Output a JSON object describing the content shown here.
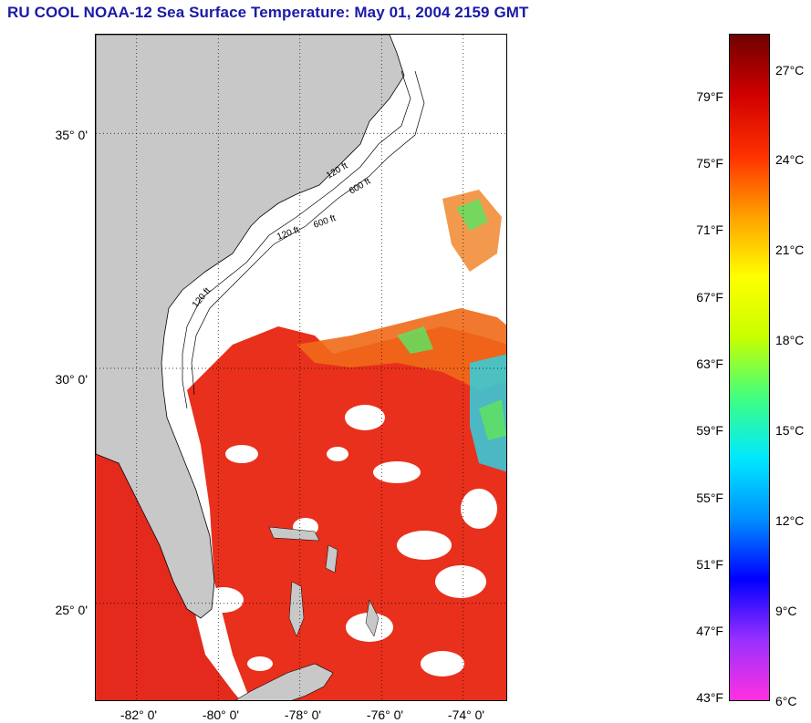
{
  "title": "RU COOL  NOAA-12  Sea Surface Temperature:  May 01, 2004 2159 GMT",
  "map": {
    "lat_labels": [
      "35° 0'",
      "30° 0'",
      "25° 0'"
    ],
    "lat_values": [
      35,
      30,
      25
    ],
    "lon_labels": [
      "-82° 0'",
      "-80° 0'",
      "-78° 0'",
      "-76° 0'",
      "-74° 0'"
    ],
    "lon_values": [
      -82,
      -80,
      -78,
      -76,
      -74
    ],
    "lat_range": [
      22.9,
      37.1
    ],
    "lon_range": [
      -83.0,
      -72.9
    ],
    "isobath_labels": [
      "120 ft",
      "600 ft",
      "120 ft",
      "600 ft",
      "120 ft"
    ],
    "land_color": "#c8c8c8",
    "warm_color": "#e8281a",
    "cloud_color": "#ffffff"
  },
  "colorbar": {
    "fahrenheit_labels": [
      "79°F",
      "75°F",
      "71°F",
      "67°F",
      "63°F",
      "59°F",
      "55°F",
      "51°F",
      "47°F",
      "43°F"
    ],
    "fahrenheit_values": [
      79,
      75,
      71,
      67,
      63,
      59,
      55,
      51,
      47,
      43
    ],
    "celsius_labels": [
      "27°C",
      "24°C",
      "21°C",
      "18°C",
      "15°C",
      "12°C",
      "9°C",
      "6°C"
    ],
    "celsius_values": [
      27,
      24,
      21,
      18,
      15,
      12,
      9,
      6
    ],
    "range_c": [
      6,
      28.2
    ],
    "gradient": [
      "#ff30e0",
      "#9830ff",
      "#0000ff",
      "#0090ff",
      "#00e8ff",
      "#40ff80",
      "#c8ff00",
      "#ffff00",
      "#ffa000",
      "#ff3000",
      "#d00000",
      "#700000"
    ]
  }
}
